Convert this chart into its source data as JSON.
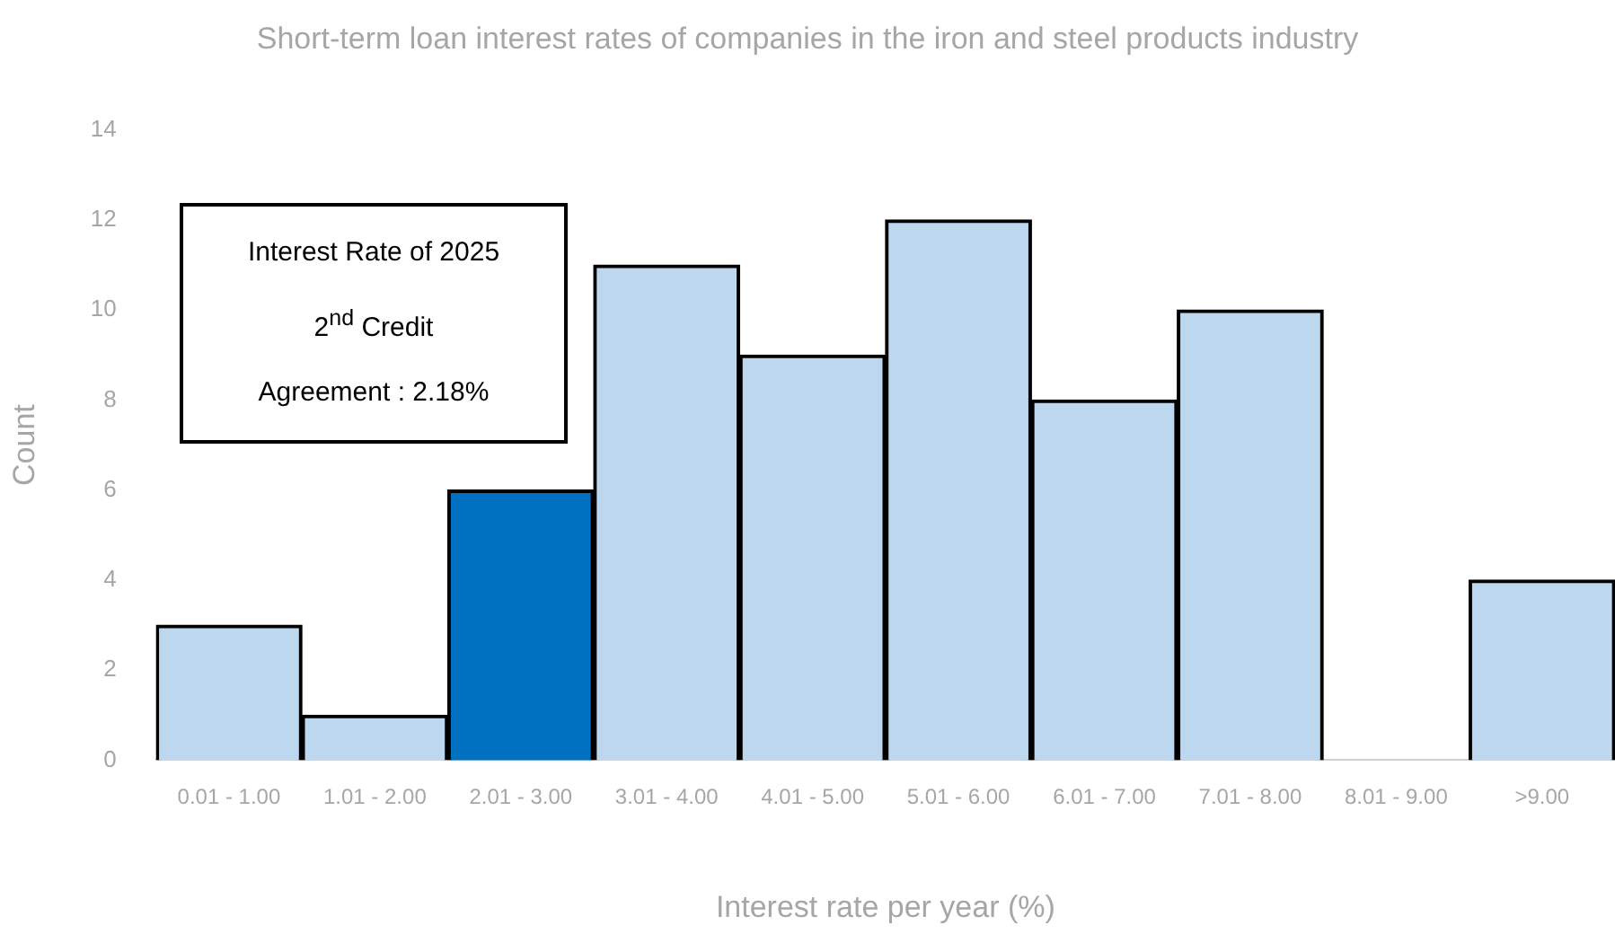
{
  "chart_data": {
    "type": "bar",
    "title": "Short-term loan interest rates of companies in the iron and steel products industry",
    "xlabel": "Interest rate per year (%)",
    "ylabel": "Count",
    "categories": [
      "0.01 - 1.00",
      "1.01 - 2.00",
      "2.01 - 3.00",
      "3.01 - 4.00",
      "4.01 - 5.00",
      "5.01 - 6.00",
      "6.01 - 7.00",
      "7.01 - 8.00",
      "8.01 - 9.00",
      ">9.00"
    ],
    "values": [
      3,
      1,
      6,
      11,
      9,
      12,
      8,
      10,
      0,
      4
    ],
    "colors": [
      "#bdd7ee",
      "#bdd7ee",
      "#0070c0",
      "#bdd7ee",
      "#bdd7ee",
      "#bdd7ee",
      "#bdd7ee",
      "#bdd7ee",
      "#bdd7ee",
      "#bdd7ee"
    ],
    "ylim": [
      0,
      14
    ],
    "yticks": [
      0,
      2,
      4,
      6,
      8,
      10,
      12,
      14
    ],
    "grid": false,
    "legend": false,
    "annotations": [
      "Interest Rate of 2025\n2$^{nd}$ Credit\nAgreement : 2.18%"
    ]
  }
}
